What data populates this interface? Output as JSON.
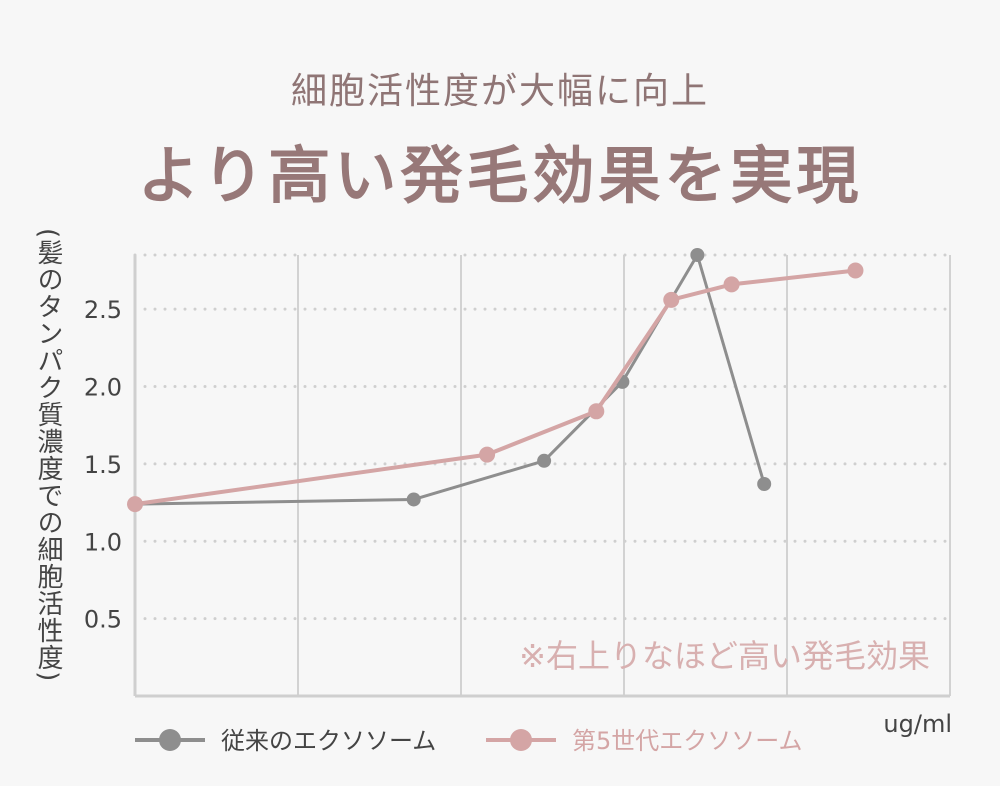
{
  "header": {
    "subtitle": "細胞活性度が大幅に向上",
    "title": "より高い発毛効果を実現"
  },
  "chart_data": {
    "type": "line",
    "ylabel": "(髪のタンパク質濃度での細胞活性度)",
    "xlabel": "ug/ml",
    "yticks": [
      "0.5",
      "1.0",
      "1.5",
      "2.0",
      "2.5"
    ],
    "yticks_values": [
      0.5,
      1.0,
      1.5,
      2.0,
      2.5
    ],
    "ylim": [
      0,
      2.85
    ],
    "xlim": [
      0,
      5
    ],
    "grid": true,
    "annotation": "※右上りなほど高い発毛効果",
    "legend_position": "bottom",
    "series": [
      {
        "name": "従来のエクソソーム",
        "color": "#8e8e8e",
        "points": [
          {
            "x": 0.0,
            "y": 1.24
          },
          {
            "x": 1.71,
            "y": 1.27
          },
          {
            "x": 2.51,
            "y": 1.52
          },
          {
            "x": 2.99,
            "y": 2.03
          },
          {
            "x": 3.45,
            "y": 2.85
          },
          {
            "x": 3.86,
            "y": 1.37
          }
        ]
      },
      {
        "name": "第5世代エクソソーム",
        "color": "#d4a5a5",
        "points": [
          {
            "x": 0.0,
            "y": 1.24
          },
          {
            "x": 2.16,
            "y": 1.56
          },
          {
            "x": 2.83,
            "y": 1.84
          },
          {
            "x": 3.29,
            "y": 2.56
          },
          {
            "x": 3.66,
            "y": 2.66
          },
          {
            "x": 4.42,
            "y": 2.75
          }
        ]
      }
    ]
  }
}
